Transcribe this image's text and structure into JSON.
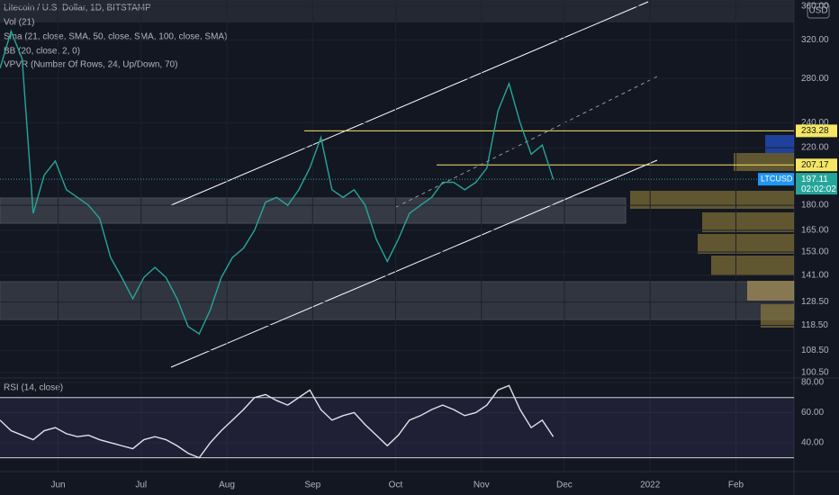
{
  "chart_data": [
    {
      "type": "line",
      "title": "Litecoin / U.S. Dollar, 1D, BITSTAMP",
      "indicators": [
        "Vol (21)",
        "Sma (21, close, SMA, 50, close, SMA, 100, close, SMA)",
        "BB (20, close, 2, 0)",
        "VPVR (Number Of Rows, 24, Up/Down, 70)"
      ],
      "currency": "USD",
      "symbol": "LTCUSD",
      "last_price": 197.11,
      "countdown": "02:02:02",
      "x": [
        0,
        4,
        8,
        12,
        16,
        20,
        24,
        28,
        32,
        36,
        40,
        44,
        48,
        52,
        56,
        60,
        64,
        68,
        72,
        76,
        80,
        84,
        88,
        92,
        96,
        100,
        104,
        108,
        112,
        116,
        120,
        124,
        128,
        132,
        136,
        140,
        144,
        148,
        152,
        156,
        160,
        164,
        168,
        172,
        176,
        180,
        184,
        188,
        192,
        196,
        200
      ],
      "values": [
        290,
        330,
        300,
        175,
        200,
        210,
        190,
        185,
        180,
        172,
        150,
        140,
        130,
        140,
        145,
        140,
        130,
        118,
        115,
        125,
        140,
        150,
        155,
        165,
        182,
        185,
        180,
        190,
        205,
        228,
        190,
        185,
        190,
        180,
        160,
        148,
        160,
        175,
        180,
        185,
        195,
        195,
        190,
        195,
        205,
        250,
        275,
        240,
        215,
        222,
        197
      ],
      "color": "#26a69a",
      "log": true,
      "xlim": [
        0,
        287
      ],
      "xticks": [
        {
          "value": 21,
          "label": "Jun"
        },
        {
          "value": 51,
          "label": "Jul"
        },
        {
          "value": 82,
          "label": "Aug"
        },
        {
          "value": 113,
          "label": "Sep"
        },
        {
          "value": 143,
          "label": "Oct"
        },
        {
          "value": 174,
          "label": "Nov"
        },
        {
          "value": 204,
          "label": "Dec"
        },
        {
          "value": 235,
          "label": "2022"
        },
        {
          "value": 266,
          "label": "Feb"
        }
      ],
      "ylim": [
        100.5,
        360
      ],
      "yticks": [
        {
          "value": 100.5,
          "label": "100.50"
        },
        {
          "value": 108.5,
          "label": "108.50"
        },
        {
          "value": 118.5,
          "label": "118.50"
        },
        {
          "value": 128.5,
          "label": "128.50"
        },
        {
          "value": 141,
          "label": "141.00"
        },
        {
          "value": 153,
          "label": "153.00"
        },
        {
          "value": 165,
          "label": "165.00"
        },
        {
          "value": 180,
          "label": "180.00"
        },
        {
          "value": 220,
          "label": "220.00"
        },
        {
          "value": 240,
          "label": "240.00"
        },
        {
          "value": 280,
          "label": "280.00"
        },
        {
          "value": 320,
          "label": "320.00"
        },
        {
          "value": 360,
          "label": "360.00"
        }
      ],
      "levels": [
        233.28,
        207.17
      ],
      "level_color": "#f5e663",
      "grid": true
    },
    {
      "type": "line",
      "title": "RSI (14, close)",
      "x": [
        0,
        4,
        8,
        12,
        16,
        20,
        24,
        28,
        32,
        36,
        40,
        44,
        48,
        52,
        56,
        60,
        64,
        68,
        72,
        76,
        80,
        84,
        88,
        92,
        96,
        100,
        104,
        108,
        112,
        116,
        120,
        124,
        128,
        132,
        136,
        140,
        144,
        148,
        152,
        156,
        160,
        164,
        168,
        172,
        176,
        180,
        184,
        188,
        192,
        196,
        200
      ],
      "values": [
        55,
        48,
        45,
        42,
        48,
        50,
        46,
        44,
        45,
        42,
        40,
        38,
        36,
        42,
        44,
        42,
        38,
        33,
        30,
        40,
        48,
        55,
        62,
        70,
        72,
        68,
        65,
        70,
        75,
        62,
        55,
        58,
        60,
        52,
        45,
        38,
        45,
        55,
        58,
        62,
        65,
        62,
        58,
        60,
        65,
        75,
        78,
        62,
        50,
        55,
        44
      ],
      "color": "#e0e3eb",
      "xlim": [
        0,
        287
      ],
      "ylim": [
        22,
        83
      ],
      "yticks": [
        {
          "value": 40,
          "label": "40.00"
        },
        {
          "value": 60,
          "label": "60.00"
        },
        {
          "value": 80,
          "label": "80.00"
        }
      ],
      "bands": [
        30,
        70
      ],
      "grid": true
    }
  ]
}
